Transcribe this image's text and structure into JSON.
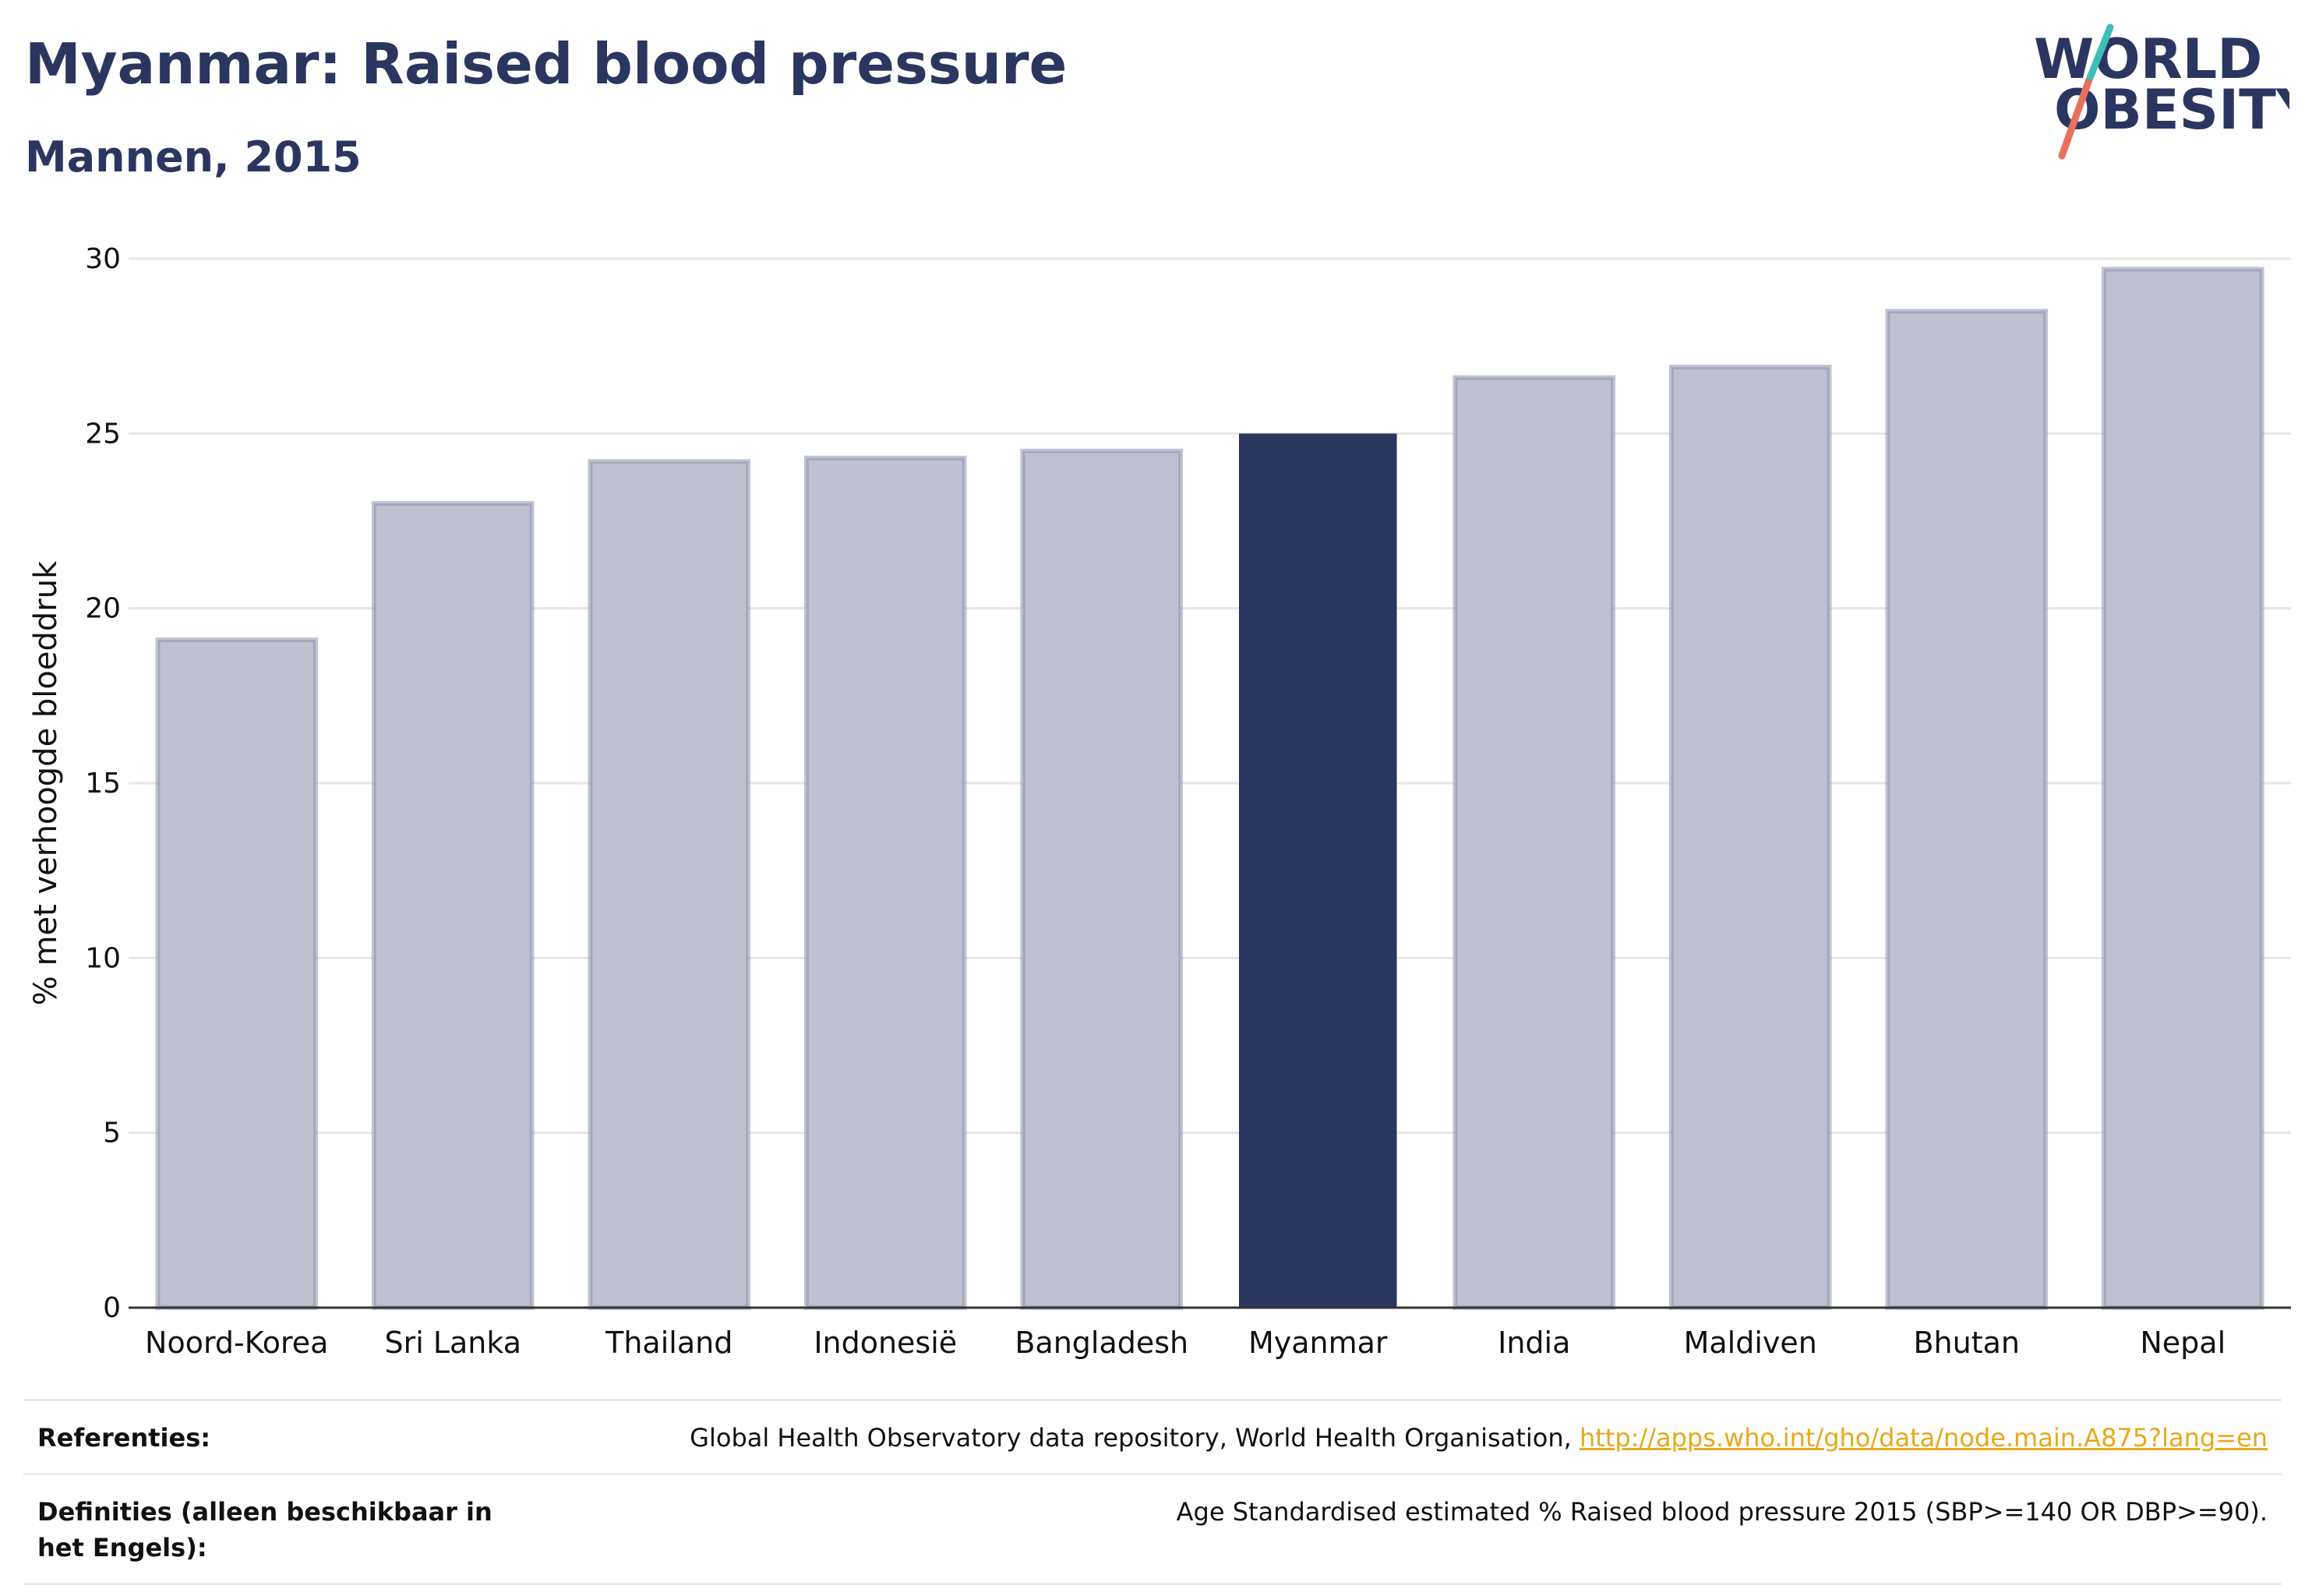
{
  "header": {
    "title": "Myanmar: Raised blood pressure",
    "subtitle": "Mannen, 2015"
  },
  "logo": {
    "line1": "WORLD",
    "line2": "OBESITY",
    "colors": {
      "text": "#2b3660",
      "slash_top": "#3bbfb9",
      "slash_bottom": "#e8705c"
    }
  },
  "chart_data": {
    "type": "bar",
    "categories": [
      "Noord-Korea",
      "Sri Lanka",
      "Thailand",
      "Indonesië",
      "Bangladesh",
      "Myanmar",
      "India",
      "Maldiven",
      "Bhutan",
      "Nepal"
    ],
    "values": [
      19.1,
      23.0,
      24.2,
      24.3,
      24.5,
      25.0,
      26.6,
      26.9,
      28.5,
      29.7
    ],
    "highlight": "Myanmar",
    "ylabel": "% met verhoogde bloeddruk",
    "ylim": [
      0,
      30
    ],
    "yticks": [
      0,
      5,
      10,
      15,
      20,
      25,
      30
    ],
    "grid": true,
    "colors": {
      "bar": "#bfc2ce",
      "bar_border": "#8d93ab",
      "highlight": "#2b3660",
      "grid": "#e6e6e6"
    }
  },
  "footer": {
    "references_label": "Referenties:",
    "references_text": "Global Health Observatory data repository, World Health Organisation, ",
    "references_link": "http://apps.who.int/gho/data/node.main.A875?lang=en",
    "definitions_label": "Definities (alleen beschikbaar in het Engels):",
    "definitions_text": "Age Standardised estimated % Raised blood pressure 2015 (SBP>=140 OR DBP>=90)."
  }
}
